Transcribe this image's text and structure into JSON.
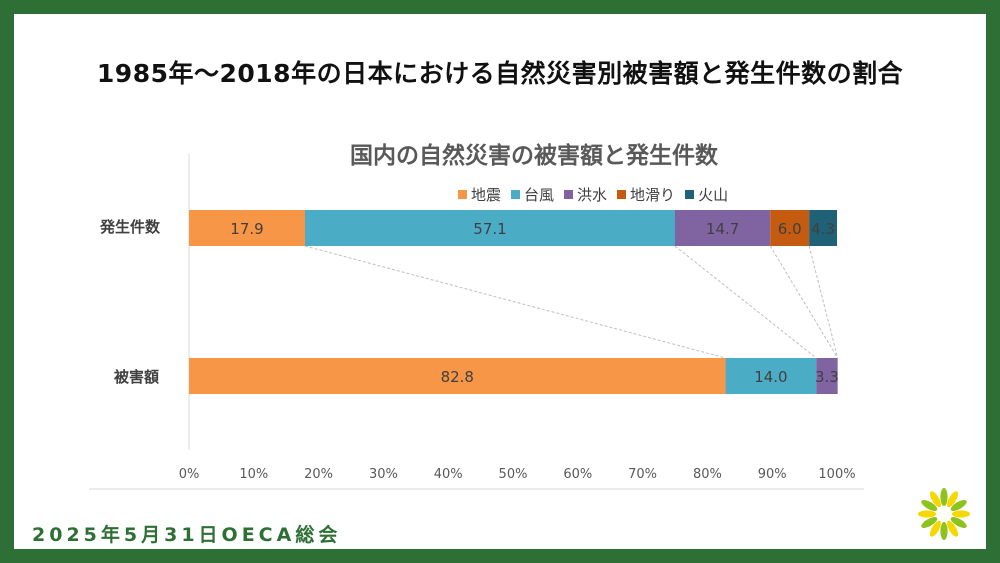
{
  "slide": {
    "headline": "1985年〜2018年の日本における自然災害別被害額と発生件数の割合",
    "footer": "2025年5月31日OECA総会"
  },
  "chart_data": {
    "type": "bar",
    "orientation": "horizontal",
    "stacked_percent": true,
    "title": "国内の自然災害の被害額と発生件数",
    "categories": [
      "発生件数",
      "被害額"
    ],
    "series": [
      {
        "name": "地震",
        "color": "#f79646",
        "values": [
          17.9,
          82.8
        ]
      },
      {
        "name": "台風",
        "color": "#4bacc6",
        "values": [
          57.1,
          14.0
        ]
      },
      {
        "name": "洪水",
        "color": "#8064a2",
        "values": [
          14.7,
          3.3
        ]
      },
      {
        "name": "地滑り",
        "color": "#c55a11",
        "values": [
          6.0,
          0.0
        ]
      },
      {
        "name": "火山",
        "color": "#1f6177",
        "values": [
          4.3,
          0.0
        ]
      }
    ],
    "data_labels": [
      [
        "17.9",
        "82.8"
      ],
      [
        "57.1",
        "14.0"
      ],
      [
        "14.7",
        "3.3"
      ],
      [
        "6.0",
        ""
      ],
      [
        "4.3",
        ""
      ]
    ],
    "x_ticks": [
      "0%",
      "10%",
      "20%",
      "30%",
      "40%",
      "50%",
      "60%",
      "70%",
      "80%",
      "90%",
      "100%"
    ],
    "xlim": [
      0,
      100
    ],
    "legend_position": "top",
    "grid": false,
    "series_lines": true
  }
}
